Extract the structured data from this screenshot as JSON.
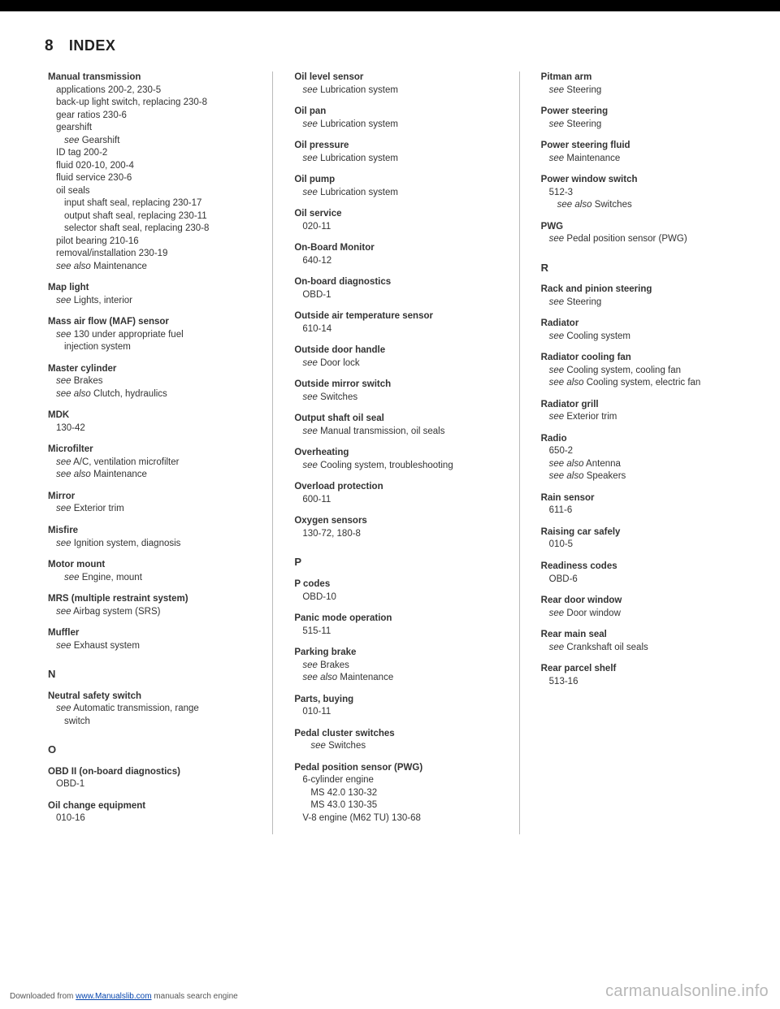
{
  "page_number": "8",
  "page_title_prefix": "I",
  "page_title_rest": "NDEX",
  "footer_prefix": "Downloaded from ",
  "footer_link": "www.Manualslib.com",
  "footer_suffix": " manuals search engine",
  "watermark": "carmanualsonline.info",
  "col1": [
    {
      "t": "Manual transmission",
      "subs": [
        "applications 200-2, 230-5",
        "back-up light switch, replacing 230-8",
        "gear ratios 230-6",
        "gearshift",
        {
          "see": "see",
          "txt": " Gearshift",
          "indent": 2
        },
        "ID tag 200-2",
        "fluid 020-10, 200-4",
        "fluid service 230-6",
        "oil seals",
        {
          "txt": "input shaft seal, replacing 230-17",
          "indent": 2
        },
        {
          "txt": "output shaft seal, replacing 230-11",
          "indent": 2
        },
        {
          "txt": "selector shaft seal, replacing 230-8",
          "indent": 2
        },
        "pilot bearing 210-16",
        "removal/installation 230-19",
        {
          "see": "see also",
          "txt": " Maintenance"
        }
      ]
    },
    {
      "t": "Map light",
      "subs": [
        {
          "see": "see",
          "txt": " Lights, interior"
        }
      ]
    },
    {
      "t": "Mass air flow (MAF) sensor",
      "subs": [
        {
          "see": "see",
          "txt": " 130 under appropriate fuel"
        },
        {
          "txt": "injection system",
          "indent": 2
        }
      ]
    },
    {
      "t": "Master cylinder",
      "subs": [
        {
          "see": "see",
          "txt": " Brakes"
        },
        {
          "see": "see also",
          "txt": " Clutch, hydraulics"
        }
      ]
    },
    {
      "t": "MDK",
      "subs": [
        "130-42"
      ]
    },
    {
      "t": "Microfilter",
      "subs": [
        {
          "see": "see",
          "txt": " A/C, ventilation microfilter"
        },
        {
          "see": "see also",
          "txt": " Maintenance"
        }
      ]
    },
    {
      "t": "Mirror",
      "subs": [
        {
          "see": "see",
          "txt": " Exterior trim"
        }
      ]
    },
    {
      "t": "Misfire",
      "subs": [
        {
          "see": "see",
          "txt": " Ignition system, diagnosis"
        }
      ]
    },
    {
      "t": "Motor mount",
      "subs": [
        {
          "see": "see",
          "txt": " Engine, mount",
          "indent": 2
        }
      ]
    },
    {
      "t": "MRS (multiple restraint system)",
      "subs": [
        {
          "see": "see",
          "txt": " Airbag system (SRS)"
        }
      ]
    },
    {
      "t": "Muffler",
      "subs": [
        {
          "see": "see",
          "txt": " Exhaust system"
        }
      ]
    },
    {
      "letter": "N"
    },
    {
      "t": "Neutral safety switch",
      "subs": [
        {
          "see": "see",
          "txt": " Automatic transmission, range"
        },
        {
          "txt": "switch",
          "indent": 2
        }
      ]
    },
    {
      "letter": "O"
    },
    {
      "t": "OBD II (on-board diagnostics)",
      "subs": [
        "OBD-1"
      ]
    },
    {
      "t": "Oil change equipment",
      "subs": [
        "010-16"
      ]
    }
  ],
  "col2": [
    {
      "t": "Oil level sensor",
      "subs": [
        {
          "see": "see",
          "txt": " Lubrication system"
        }
      ]
    },
    {
      "t": "Oil pan",
      "subs": [
        {
          "see": "see",
          "txt": " Lubrication system"
        }
      ]
    },
    {
      "t": "Oil pressure",
      "subs": [
        {
          "see": "see",
          "txt": " Lubrication system"
        }
      ]
    },
    {
      "t": "Oil pump",
      "subs": [
        {
          "see": "see",
          "txt": " Lubrication system"
        }
      ]
    },
    {
      "t": "Oil service",
      "subs": [
        "020-11"
      ]
    },
    {
      "t": "On-Board Monitor",
      "subs": [
        "640-12"
      ]
    },
    {
      "t": "On-board diagnostics",
      "subs": [
        "OBD-1"
      ]
    },
    {
      "t": "Outside air temperature sensor",
      "subs": [
        "610-14"
      ]
    },
    {
      "t": "Outside door handle",
      "subs": [
        {
          "see": "see",
          "txt": " Door lock"
        }
      ]
    },
    {
      "t": "Outside mirror switch",
      "subs": [
        {
          "see": "see",
          "txt": " Switches"
        }
      ]
    },
    {
      "t": "Output shaft oil seal",
      "subs": [
        {
          "see": "see",
          "txt": " Manual transmission, oil seals"
        }
      ]
    },
    {
      "t": "Overheating",
      "subs": [
        {
          "see": "see",
          "txt": " Cooling system, troubleshooting"
        }
      ]
    },
    {
      "t": "Overload protection",
      "subs": [
        "600-11"
      ]
    },
    {
      "t": "Oxygen sensors",
      "subs": [
        "130-72, 180-8"
      ]
    },
    {
      "letter": "P"
    },
    {
      "t": "P codes",
      "subs": [
        "OBD-10"
      ]
    },
    {
      "t": "Panic mode operation",
      "subs": [
        "515-11"
      ]
    },
    {
      "t": "Parking brake",
      "subs": [
        {
          "see": "see",
          "txt": " Brakes"
        },
        {
          "see": "see also",
          "txt": " Maintenance"
        }
      ]
    },
    {
      "t": "Parts, buying",
      "subs": [
        "010-11"
      ]
    },
    {
      "t": "Pedal cluster switches",
      "subs": [
        {
          "see": "see",
          "txt": " Switches",
          "indent": 2
        }
      ]
    },
    {
      "t": "Pedal position sensor (PWG)",
      "subs": [
        "6-cylinder engine",
        {
          "txt": "MS 42.0 130-32",
          "indent": 2
        },
        {
          "txt": "MS 43.0 130-35",
          "indent": 2
        },
        "V-8 engine (M62 TU) 130-68"
      ]
    }
  ],
  "col3": [
    {
      "t": "Pitman arm",
      "subs": [
        {
          "see": "see",
          "txt": " Steering"
        }
      ]
    },
    {
      "t": "Power steering",
      "subs": [
        {
          "see": "see",
          "txt": " Steering"
        }
      ]
    },
    {
      "t": "Power steering fluid",
      "subs": [
        {
          "see": "see",
          "txt": " Maintenance"
        }
      ]
    },
    {
      "t": "Power window switch",
      "subs": [
        "512-3",
        {
          "see": "see also",
          "txt": " Switches",
          "indent": 2
        }
      ]
    },
    {
      "t": "PWG",
      "subs": [
        {
          "see": "see",
          "txt": " Pedal position sensor (PWG)"
        }
      ]
    },
    {
      "letter": "R"
    },
    {
      "t": "Rack and pinion steering",
      "subs": [
        {
          "see": "see",
          "txt": " Steering"
        }
      ]
    },
    {
      "t": "Radiator",
      "subs": [
        {
          "see": "see",
          "txt": " Cooling system"
        }
      ]
    },
    {
      "t": "Radiator cooling fan",
      "subs": [
        {
          "see": "see",
          "txt": " Cooling system, cooling fan"
        },
        {
          "see": "see also",
          "txt": " Cooling system, electric fan"
        }
      ]
    },
    {
      "t": "Radiator grill",
      "subs": [
        {
          "see": "see",
          "txt": " Exterior trim"
        }
      ]
    },
    {
      "t": "Radio",
      "subs": [
        "650-2",
        {
          "see": "see also",
          "txt": " Antenna"
        },
        {
          "see": "see also",
          "txt": " Speakers"
        }
      ]
    },
    {
      "t": "Rain sensor",
      "subs": [
        "611-6"
      ]
    },
    {
      "t": "Raising car safely",
      "subs": [
        "010-5"
      ]
    },
    {
      "t": "Readiness codes",
      "subs": [
        "OBD-6"
      ]
    },
    {
      "t": "Rear door window",
      "subs": [
        {
          "see": "see",
          "txt": " Door window"
        }
      ]
    },
    {
      "t": "Rear main seal",
      "subs": [
        {
          "see": "see",
          "txt": " Crankshaft oil seals"
        }
      ]
    },
    {
      "t": "Rear parcel shelf",
      "subs": [
        "513-16"
      ]
    }
  ]
}
